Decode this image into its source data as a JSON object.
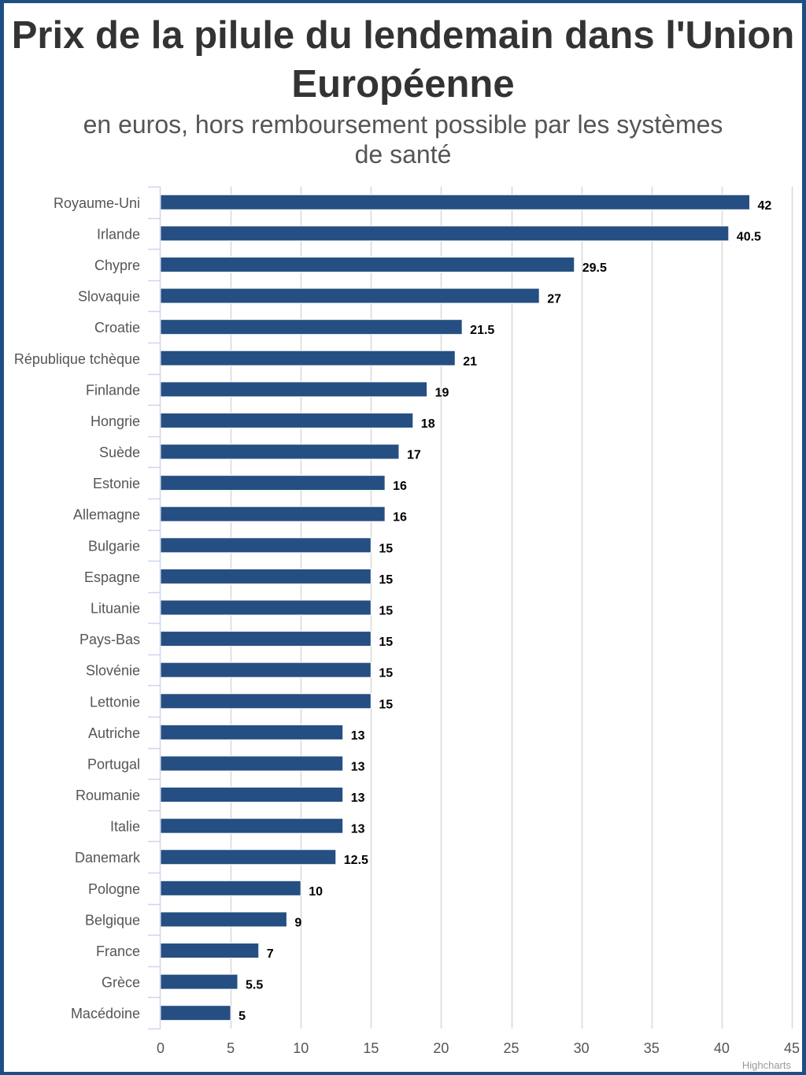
{
  "chart_data": {
    "type": "bar",
    "orientation": "horizontal",
    "title": "Prix de la pilule du lendemain dans l'Union Européenne",
    "subtitle": "en euros, hors remboursement possible par les systèmes de santé",
    "xlabel": "",
    "ylabel": "",
    "categories": [
      "Royaume-Uni",
      "Irlande",
      "Chypre",
      "Slovaquie",
      "Croatie",
      "République tchèque",
      "Finlande",
      "Hongrie",
      "Suède",
      "Estonie",
      "Allemagne",
      "Bulgarie",
      "Espagne",
      "Lituanie",
      "Pays-Bas",
      "Slovénie",
      "Lettonie",
      "Autriche",
      "Portugal",
      "Roumanie",
      "Italie",
      "Danemark",
      "Pologne",
      "Belgique",
      "France",
      "Grèce",
      "Macédoine"
    ],
    "values": [
      42,
      40.5,
      29.5,
      27,
      21.5,
      21,
      19,
      18,
      17,
      16,
      16,
      15,
      15,
      15,
      15,
      15,
      15,
      13,
      13,
      13,
      13,
      12.5,
      10,
      9,
      7,
      5.5,
      5
    ],
    "value_labels": [
      "42",
      "40.5",
      "29.5",
      "27",
      "21.5",
      "21",
      "19",
      "18",
      "17",
      "16",
      "16",
      "15",
      "15",
      "15",
      "15",
      "15",
      "15",
      "13",
      "13",
      "13",
      "13",
      "12.5",
      "10",
      "9",
      "7",
      "5.5",
      "5"
    ],
    "value_axis": {
      "min": 0,
      "max": 45,
      "ticks": [
        0,
        5,
        10,
        15,
        20,
        25,
        30,
        35,
        40,
        45
      ],
      "tick_labels": [
        "0",
        "5",
        "10",
        "15",
        "20",
        "25",
        "30",
        "35",
        "40",
        "45"
      ]
    },
    "grid": true,
    "legend": "none",
    "bar_color": "#254f82",
    "credits": "Highcharts"
  },
  "colors": {
    "frame": "#1f4e85",
    "grid": "#d8d8d8",
    "axis": "#ccd6eb"
  }
}
